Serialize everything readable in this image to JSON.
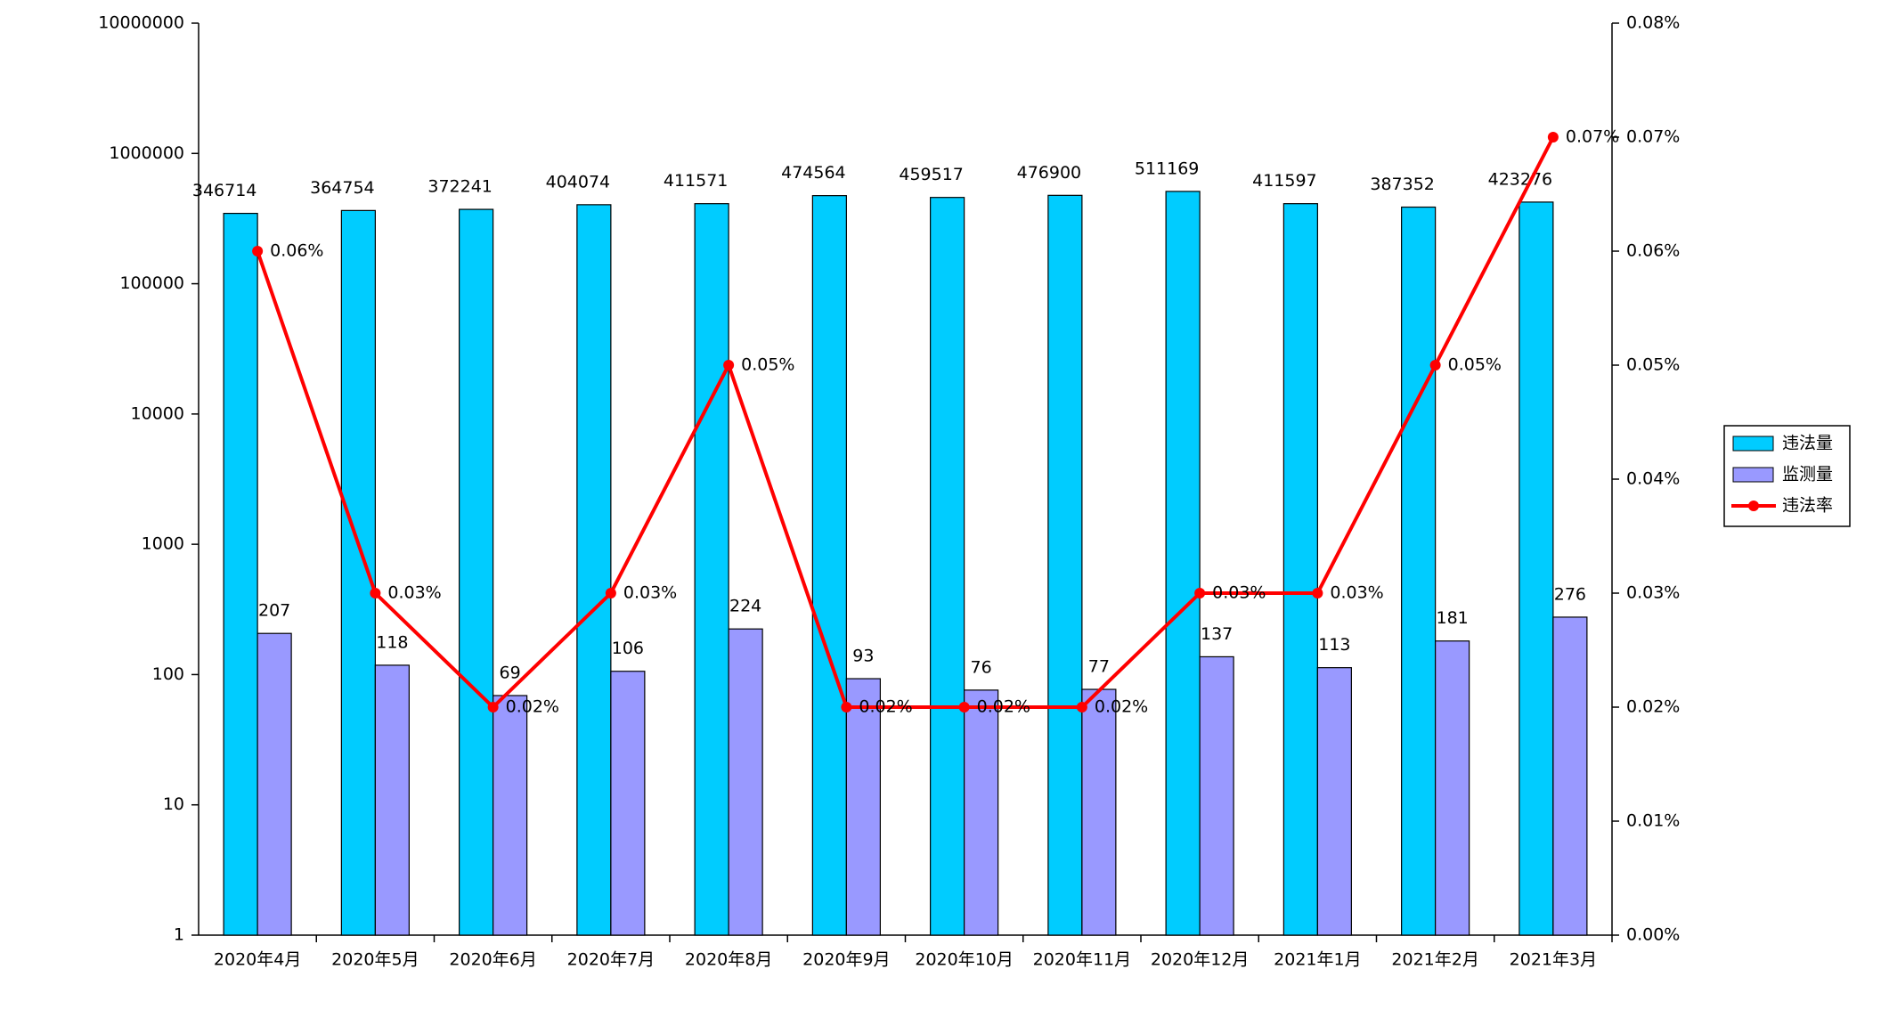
{
  "chart_data": {
    "type": "bar-line",
    "categories": [
      "2020年4月",
      "2020年5月",
      "2020年6月",
      "2020年7月",
      "2020年8月",
      "2020年9月",
      "2020年10月",
      "2020年11月",
      "2020年12月",
      "2021年1月",
      "2021年2月",
      "2021年3月"
    ],
    "series": [
      {
        "name": "违法量",
        "type": "bar",
        "color": "#00ccff",
        "values": [
          346714,
          364754,
          372241,
          404074,
          411571,
          474564,
          459517,
          476900,
          511169,
          411597,
          387352,
          423276
        ]
      },
      {
        "name": "监测量",
        "type": "bar",
        "color": "#9999ff",
        "values": [
          207,
          118,
          69,
          106,
          224,
          93,
          76,
          77,
          137,
          113,
          181,
          276
        ]
      },
      {
        "name": "违法率",
        "type": "line",
        "axis": "y2",
        "color": "#ff0000",
        "values": [
          0.06,
          0.03,
          0.02,
          0.03,
          0.05,
          0.02,
          0.02,
          0.02,
          0.03,
          0.03,
          0.05,
          0.07
        ],
        "value_labels": [
          "0.06%",
          "0.03%",
          "0.02%",
          "0.03%",
          "0.05%",
          "0.02%",
          "0.02%",
          "0.02%",
          "0.03%",
          "0.03%",
          "0.05%",
          "0.07%"
        ]
      }
    ],
    "ylim": [
      1,
      10000000
    ],
    "yscale": "log",
    "yticks": [
      1,
      10,
      100,
      1000,
      10000,
      100000,
      1000000,
      10000000
    ],
    "y2lim": [
      0,
      0.08
    ],
    "y2ticks": [
      {
        "value": 0,
        "label": "0.00%"
      },
      {
        "value": 0.01,
        "label": "0.01%"
      },
      {
        "value": 0.02,
        "label": "0.02%"
      },
      {
        "value": 0.03,
        "label": "0.03%"
      },
      {
        "value": 0.04,
        "label": "0.04%"
      },
      {
        "value": 0.05,
        "label": "0.05%"
      },
      {
        "value": 0.06,
        "label": "0.06%"
      },
      {
        "value": 0.07,
        "label": "0.07%"
      },
      {
        "value": 0.08,
        "label": "0.08%"
      }
    ],
    "grid": false,
    "legend": "right"
  }
}
